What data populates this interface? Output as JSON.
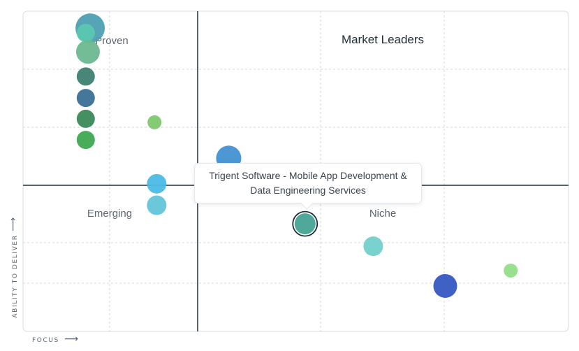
{
  "chart_data": {
    "type": "scatter",
    "xlabel": "FOCUS",
    "ylabel": "ABILITY TO DELIVER",
    "xlim": [
      0,
      100
    ],
    "ylim": [
      0,
      100
    ],
    "grid": true,
    "quadrants": {
      "top_left": "Proven",
      "top_right": "Market Leaders",
      "bottom_left": "Emerging",
      "bottom_right": "Niche"
    },
    "points": [
      {
        "x": 12.3,
        "y": 94.7,
        "r": 21,
        "color": "#4f9fb3"
      },
      {
        "x": 11.5,
        "y": 93.2,
        "r": 13,
        "color": "#5bc8b0"
      },
      {
        "x": 11.9,
        "y": 87.3,
        "r": 17,
        "color": "#6db88f"
      },
      {
        "x": 11.5,
        "y": 79.6,
        "r": 13,
        "color": "#3e7f73"
      },
      {
        "x": 11.5,
        "y": 72.9,
        "r": 13,
        "color": "#3b7096"
      },
      {
        "x": 11.5,
        "y": 66.4,
        "r": 13,
        "color": "#3b8a5a"
      },
      {
        "x": 11.5,
        "y": 59.8,
        "r": 13,
        "color": "#3fa852"
      },
      {
        "x": 24.1,
        "y": 65.3,
        "r": 10,
        "color": "#7ec86f"
      },
      {
        "x": 37.7,
        "y": 54.1,
        "r": 18,
        "color": "#4391d3"
      },
      {
        "x": 24.5,
        "y": 46.1,
        "r": 14,
        "color": "#4cbbe6"
      },
      {
        "x": 24.5,
        "y": 39.4,
        "r": 14,
        "color": "#62c5d8"
      },
      {
        "x": 51.7,
        "y": 33.6,
        "r": 16,
        "color": "#46a394",
        "selected": true
      },
      {
        "x": 64.2,
        "y": 26.6,
        "r": 14,
        "color": "#72d0cb"
      },
      {
        "x": 77.4,
        "y": 14.2,
        "r": 17,
        "color": "#3558c2"
      },
      {
        "x": 89.4,
        "y": 19.0,
        "r": 10,
        "color": "#94dd8a"
      }
    ]
  },
  "tooltip": {
    "line1": "Trigent Software - Mobile App Development &",
    "line2": "Data Engineering Services"
  }
}
